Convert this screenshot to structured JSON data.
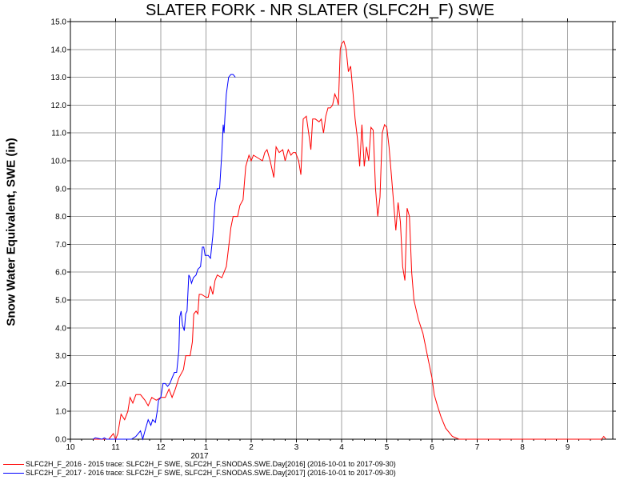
{
  "chart_data": {
    "type": "line",
    "title": "SLATER FORK - NR SLATER (SLFC2H_F) SWE",
    "ylabel": "Snow Water Equivalent, SWE (in)",
    "xlabel": "",
    "ylim": [
      0,
      15
    ],
    "yticks": [
      "0.0",
      "1.0",
      "2.0",
      "3.0",
      "4.0",
      "5.0",
      "6.0",
      "7.0",
      "8.0",
      "9.0",
      "10.0",
      "11.0",
      "12.0",
      "13.0",
      "14.0",
      "15.0"
    ],
    "xlim": [
      10.0,
      22.0
    ],
    "x_unit": "months since 2016-10-01 boundary (tick labels show month numbers)",
    "xticks": [
      {
        "pos": 10,
        "label": "10"
      },
      {
        "pos": 11,
        "label": "11"
      },
      {
        "pos": 12,
        "label": "12"
      },
      {
        "pos": 13,
        "label": "1"
      },
      {
        "pos": 14,
        "label": "2"
      },
      {
        "pos": 15,
        "label": "3"
      },
      {
        "pos": 16,
        "label": "4"
      },
      {
        "pos": 17,
        "label": "5"
      },
      {
        "pos": 18,
        "label": "6"
      },
      {
        "pos": 19,
        "label": "7"
      },
      {
        "pos": 20,
        "label": "8"
      },
      {
        "pos": 21,
        "label": "9"
      }
    ],
    "year_label": "2017",
    "grid": true,
    "series": [
      {
        "name": "SLFC2H_F_2016 - 2015 trace: SLFC2H_F SWE, SLFC2H_F.SNODAS.SWE.Day[2016] (2016-10-01 to 2017-09-30)",
        "color": "#ff0000",
        "points": [
          [
            10.5,
            0.0
          ],
          [
            10.85,
            0.0
          ],
          [
            10.95,
            0.2
          ],
          [
            11.0,
            0.0
          ],
          [
            11.05,
            0.2
          ],
          [
            11.12,
            0.9
          ],
          [
            11.2,
            0.7
          ],
          [
            11.27,
            1.0
          ],
          [
            11.32,
            1.5
          ],
          [
            11.38,
            1.3
          ],
          [
            11.45,
            1.6
          ],
          [
            11.55,
            1.6
          ],
          [
            11.65,
            1.4
          ],
          [
            11.72,
            1.2
          ],
          [
            11.8,
            1.5
          ],
          [
            11.9,
            1.4
          ],
          [
            12.0,
            1.5
          ],
          [
            12.1,
            1.5
          ],
          [
            12.18,
            1.8
          ],
          [
            12.25,
            1.5
          ],
          [
            12.32,
            1.8
          ],
          [
            12.4,
            2.2
          ],
          [
            12.5,
            2.5
          ],
          [
            12.55,
            3.0
          ],
          [
            12.65,
            3.0
          ],
          [
            12.7,
            3.5
          ],
          [
            12.73,
            4.5
          ],
          [
            12.78,
            4.6
          ],
          [
            12.82,
            4.5
          ],
          [
            12.85,
            5.2
          ],
          [
            12.9,
            5.2
          ],
          [
            13.0,
            5.1
          ],
          [
            13.05,
            5.1
          ],
          [
            13.1,
            5.5
          ],
          [
            13.15,
            5.2
          ],
          [
            13.2,
            5.7
          ],
          [
            13.25,
            5.9
          ],
          [
            13.35,
            5.8
          ],
          [
            13.45,
            6.2
          ],
          [
            13.5,
            6.9
          ],
          [
            13.55,
            7.6
          ],
          [
            13.6,
            8.0
          ],
          [
            13.7,
            8.0
          ],
          [
            13.75,
            8.4
          ],
          [
            13.82,
            8.6
          ],
          [
            13.88,
            9.8
          ],
          [
            13.95,
            10.2
          ],
          [
            14.0,
            10.0
          ],
          [
            14.05,
            10.2
          ],
          [
            14.15,
            10.1
          ],
          [
            14.25,
            10.0
          ],
          [
            14.3,
            10.3
          ],
          [
            14.35,
            10.4
          ],
          [
            14.42,
            10.0
          ],
          [
            14.5,
            9.4
          ],
          [
            14.55,
            10.5
          ],
          [
            14.62,
            10.3
          ],
          [
            14.7,
            10.4
          ],
          [
            14.75,
            10.0
          ],
          [
            14.82,
            10.4
          ],
          [
            14.88,
            10.2
          ],
          [
            14.93,
            10.3
          ],
          [
            14.98,
            10.3
          ],
          [
            15.05,
            10.0
          ],
          [
            15.1,
            9.5
          ],
          [
            15.15,
            11.5
          ],
          [
            15.22,
            11.6
          ],
          [
            15.28,
            10.9
          ],
          [
            15.32,
            10.4
          ],
          [
            15.36,
            11.5
          ],
          [
            15.42,
            11.5
          ],
          [
            15.5,
            11.4
          ],
          [
            15.55,
            11.5
          ],
          [
            15.6,
            11.0
          ],
          [
            15.65,
            11.6
          ],
          [
            15.7,
            11.9
          ],
          [
            15.75,
            11.9
          ],
          [
            15.8,
            12.0
          ],
          [
            15.85,
            12.4
          ],
          [
            15.9,
            12.2
          ],
          [
            15.93,
            12.0
          ],
          [
            15.97,
            14.0
          ],
          [
            16.0,
            14.2
          ],
          [
            16.05,
            14.3
          ],
          [
            16.1,
            14.0
          ],
          [
            16.15,
            13.2
          ],
          [
            16.2,
            13.4
          ],
          [
            16.25,
            12.5
          ],
          [
            16.3,
            11.5
          ],
          [
            16.35,
            10.8
          ],
          [
            16.4,
            9.8
          ],
          [
            16.45,
            11.3
          ],
          [
            16.5,
            9.8
          ],
          [
            16.55,
            10.5
          ],
          [
            16.6,
            10.0
          ],
          [
            16.65,
            11.2
          ],
          [
            16.7,
            11.1
          ],
          [
            16.75,
            9.0
          ],
          [
            16.8,
            8.0
          ],
          [
            16.85,
            8.7
          ],
          [
            16.9,
            11.0
          ],
          [
            16.95,
            11.3
          ],
          [
            17.0,
            11.2
          ],
          [
            17.05,
            10.5
          ],
          [
            17.1,
            9.5
          ],
          [
            17.15,
            8.5
          ],
          [
            17.2,
            7.5
          ],
          [
            17.25,
            8.5
          ],
          [
            17.3,
            7.8
          ],
          [
            17.35,
            6.2
          ],
          [
            17.4,
            5.7
          ],
          [
            17.45,
            8.3
          ],
          [
            17.5,
            8.0
          ],
          [
            17.55,
            6.0
          ],
          [
            17.6,
            5.0
          ],
          [
            17.7,
            4.3
          ],
          [
            17.8,
            3.8
          ],
          [
            17.9,
            3.0
          ],
          [
            18.0,
            2.2
          ],
          [
            18.05,
            1.6
          ],
          [
            18.12,
            1.2
          ],
          [
            18.2,
            0.8
          ],
          [
            18.3,
            0.4
          ],
          [
            18.45,
            0.1
          ],
          [
            18.6,
            0.0
          ],
          [
            18.7,
            0.0
          ],
          [
            21.75,
            0.0
          ],
          [
            21.8,
            0.1
          ],
          [
            21.85,
            0.0
          ]
        ]
      },
      {
        "name": "SLFC2H_F_2017 - 2016 trace: SLFC2H_F SWE, SLFC2H_F.SNODAS.SWE.Day[2017] (2016-10-01 to 2017-09-30)",
        "color": "#0000ff",
        "points": [
          [
            10.5,
            0.0
          ],
          [
            10.55,
            0.05
          ],
          [
            10.7,
            0.0
          ],
          [
            10.75,
            0.05
          ],
          [
            10.8,
            0.0
          ],
          [
            11.2,
            0.0
          ],
          [
            11.35,
            0.0
          ],
          [
            11.45,
            0.1
          ],
          [
            11.55,
            0.3
          ],
          [
            11.6,
            0.0
          ],
          [
            11.65,
            0.3
          ],
          [
            11.72,
            0.7
          ],
          [
            11.78,
            0.5
          ],
          [
            11.82,
            0.7
          ],
          [
            11.88,
            0.6
          ],
          [
            11.92,
            1.0
          ],
          [
            11.95,
            1.4
          ],
          [
            12.0,
            1.5
          ],
          [
            12.05,
            2.0
          ],
          [
            12.1,
            2.0
          ],
          [
            12.15,
            1.9
          ],
          [
            12.2,
            2.0
          ],
          [
            12.25,
            2.2
          ],
          [
            12.3,
            2.4
          ],
          [
            12.35,
            2.4
          ],
          [
            12.4,
            3.2
          ],
          [
            12.42,
            4.4
          ],
          [
            12.45,
            4.6
          ],
          [
            12.48,
            4.1
          ],
          [
            12.52,
            3.9
          ],
          [
            12.55,
            4.5
          ],
          [
            12.58,
            4.6
          ],
          [
            12.62,
            5.9
          ],
          [
            12.65,
            5.8
          ],
          [
            12.68,
            5.6
          ],
          [
            12.72,
            5.8
          ],
          [
            12.78,
            5.9
          ],
          [
            12.82,
            6.1
          ],
          [
            12.88,
            6.2
          ],
          [
            12.92,
            6.9
          ],
          [
            12.95,
            6.9
          ],
          [
            12.98,
            6.6
          ],
          [
            13.05,
            6.6
          ],
          [
            13.1,
            6.5
          ],
          [
            13.15,
            7.3
          ],
          [
            13.2,
            8.5
          ],
          [
            13.25,
            9.0
          ],
          [
            13.3,
            9.0
          ],
          [
            13.35,
            10.3
          ],
          [
            13.38,
            11.3
          ],
          [
            13.4,
            11.0
          ],
          [
            13.42,
            11.6
          ],
          [
            13.45,
            12.4
          ],
          [
            13.5,
            13.0
          ],
          [
            13.55,
            13.1
          ],
          [
            13.6,
            13.1
          ],
          [
            13.65,
            13.0
          ]
        ]
      }
    ],
    "legend_placement": "bottom-left"
  }
}
